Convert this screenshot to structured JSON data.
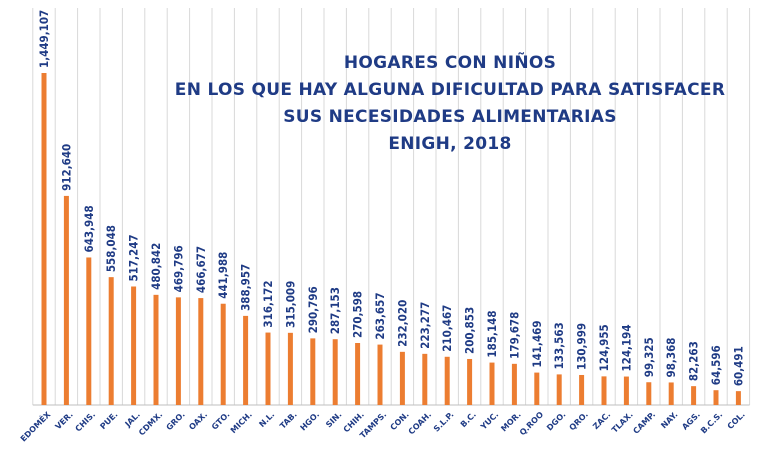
{
  "chart_data": {
    "type": "bar",
    "title": [
      "HOGARES CON NIÑOS",
      "EN LOS QUE HAY ALGUNA DIFICULTAD PARA SATISFACER",
      "SUS NECESIDADES ALIMENTARIAS",
      "ENIGH, 2018"
    ],
    "xlabel": "",
    "ylabel": "",
    "ylim": [
      0,
      1449107
    ],
    "grid": "vertical",
    "categories": [
      "EDOMÉX",
      "VER.",
      "CHIS.",
      "PUE.",
      "JAL.",
      "CDMX.",
      "GRO.",
      "OAX.",
      "GTO.",
      "MICH.",
      "N.L.",
      "TAB.",
      "HGO.",
      "SIN.",
      "CHIH.",
      "TAMPS.",
      "CON.",
      "COAH.",
      "S.L.P.",
      "B.C.",
      "YUC.",
      "MOR.",
      "Q.ROO",
      "DGO.",
      "QRO.",
      "ZAC.",
      "TLAX.",
      "CAMP.",
      "NAY.",
      "AGS.",
      "B.C.S.",
      "COL."
    ],
    "values": [
      1449107,
      912640,
      643948,
      558048,
      517247,
      480842,
      469796,
      466677,
      441988,
      388957,
      316172,
      315009,
      290796,
      287153,
      270598,
      263657,
      232020,
      223277,
      210467,
      200853,
      185148,
      179678,
      141469,
      133563,
      130999,
      124955,
      124194,
      99325,
      98368,
      82263,
      64596,
      60491
    ],
    "value_labels": [
      "1,449,107",
      "912,640",
      "643,948",
      "558,048",
      "517,247",
      "480,842",
      "469,796",
      "466,677",
      "441,988",
      "388,957",
      "316,172",
      "315,009",
      "290,796",
      "287,153",
      "270,598",
      "263,657",
      "232,020",
      "223,277",
      "210,467",
      "200,853",
      "185,148",
      "179,678",
      "141,469",
      "133,563",
      "130,999",
      "124,955",
      "124,194",
      "99,325",
      "98,368",
      "82,263",
      "64,596",
      "60,491"
    ],
    "colors": {
      "bar": "#ec7d31",
      "grid": "#d9d9d9",
      "label": "#1f3b85",
      "category": "#1f3b85"
    }
  }
}
